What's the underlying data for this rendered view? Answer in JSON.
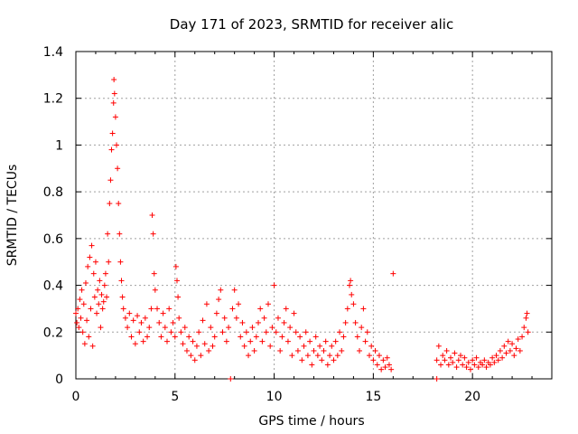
{
  "chart_data": {
    "type": "scatter",
    "title": "Day 171 of 2023, SRMTID for receiver alic",
    "xlabel": "GPS time / hours",
    "ylabel": "SRMTID / TECUs",
    "xlim": [
      0,
      24
    ],
    "ylim": [
      0,
      1.4
    ],
    "xticks": [
      0,
      5,
      10,
      15,
      20
    ],
    "xtick_labels": [
      "0",
      "5",
      "10",
      "15",
      "20"
    ],
    "yticks": [
      0,
      0.2,
      0.4,
      0.6,
      0.8,
      1.0,
      1.2,
      1.4
    ],
    "ytick_labels": [
      "0",
      "0.2",
      "0.4",
      "0.6",
      "0.8",
      "1",
      "1.2",
      "1.4"
    ],
    "grid": true,
    "marker": "+",
    "color": "#ff0000",
    "series": [
      {
        "name": "SRMTID",
        "points": [
          [
            0.0,
            0.28
          ],
          [
            0.05,
            0.24
          ],
          [
            0.1,
            0.3
          ],
          [
            0.15,
            0.22
          ],
          [
            0.2,
            0.34
          ],
          [
            0.25,
            0.26
          ],
          [
            0.3,
            0.38
          ],
          [
            0.35,
            0.2
          ],
          [
            0.4,
            0.32
          ],
          [
            0.45,
            0.15
          ],
          [
            0.5,
            0.41
          ],
          [
            0.55,
            0.25
          ],
          [
            0.6,
            0.48
          ],
          [
            0.65,
            0.18
          ],
          [
            0.7,
            0.52
          ],
          [
            0.75,
            0.3
          ],
          [
            0.8,
            0.57
          ],
          [
            0.85,
            0.14
          ],
          [
            0.9,
            0.45
          ],
          [
            0.95,
            0.35
          ],
          [
            1.0,
            0.5
          ],
          [
            1.05,
            0.28
          ],
          [
            1.1,
            0.38
          ],
          [
            1.15,
            0.32
          ],
          [
            1.2,
            0.42
          ],
          [
            1.25,
            0.22
          ],
          [
            1.3,
            0.36
          ],
          [
            1.35,
            0.3
          ],
          [
            1.4,
            0.33
          ],
          [
            1.45,
            0.4
          ],
          [
            1.5,
            0.45
          ],
          [
            1.55,
            0.35
          ],
          [
            1.6,
            0.62
          ],
          [
            1.65,
            0.5
          ],
          [
            1.7,
            0.75
          ],
          [
            1.75,
            0.85
          ],
          [
            1.8,
            0.98
          ],
          [
            1.85,
            1.05
          ],
          [
            1.9,
            1.18
          ],
          [
            1.92,
            1.28
          ],
          [
            1.95,
            1.22
          ],
          [
            2.0,
            1.12
          ],
          [
            2.05,
            1.0
          ],
          [
            2.1,
            0.9
          ],
          [
            2.15,
            0.75
          ],
          [
            2.2,
            0.62
          ],
          [
            2.25,
            0.5
          ],
          [
            2.3,
            0.42
          ],
          [
            2.35,
            0.35
          ],
          [
            2.4,
            0.3
          ],
          [
            2.5,
            0.26
          ],
          [
            2.6,
            0.22
          ],
          [
            2.7,
            0.28
          ],
          [
            2.8,
            0.18
          ],
          [
            2.9,
            0.25
          ],
          [
            3.0,
            0.15
          ],
          [
            3.1,
            0.27
          ],
          [
            3.2,
            0.2
          ],
          [
            3.3,
            0.24
          ],
          [
            3.4,
            0.16
          ],
          [
            3.5,
            0.26
          ],
          [
            3.6,
            0.18
          ],
          [
            3.7,
            0.22
          ],
          [
            3.8,
            0.3
          ],
          [
            3.85,
            0.7
          ],
          [
            3.9,
            0.62
          ],
          [
            3.95,
            0.45
          ],
          [
            4.0,
            0.38
          ],
          [
            4.1,
            0.3
          ],
          [
            4.2,
            0.24
          ],
          [
            4.3,
            0.18
          ],
          [
            4.4,
            0.28
          ],
          [
            4.5,
            0.22
          ],
          [
            4.6,
            0.16
          ],
          [
            4.7,
            0.3
          ],
          [
            4.8,
            0.2
          ],
          [
            4.9,
            0.24
          ],
          [
            5.0,
            0.18
          ],
          [
            5.05,
            0.48
          ],
          [
            5.1,
            0.42
          ],
          [
            5.15,
            0.35
          ],
          [
            5.2,
            0.26
          ],
          [
            5.3,
            0.2
          ],
          [
            5.4,
            0.15
          ],
          [
            5.5,
            0.22
          ],
          [
            5.6,
            0.12
          ],
          [
            5.7,
            0.18
          ],
          [
            5.8,
            0.1
          ],
          [
            5.9,
            0.16
          ],
          [
            6.0,
            0.08
          ],
          [
            6.1,
            0.14
          ],
          [
            6.2,
            0.2
          ],
          [
            6.3,
            0.1
          ],
          [
            6.4,
            0.25
          ],
          [
            6.5,
            0.15
          ],
          [
            6.6,
            0.32
          ],
          [
            6.7,
            0.12
          ],
          [
            6.8,
            0.22
          ],
          [
            6.9,
            0.14
          ],
          [
            7.0,
            0.18
          ],
          [
            7.1,
            0.28
          ],
          [
            7.2,
            0.34
          ],
          [
            7.3,
            0.38
          ],
          [
            7.4,
            0.2
          ],
          [
            7.5,
            0.26
          ],
          [
            7.6,
            0.16
          ],
          [
            7.7,
            0.22
          ],
          [
            7.8,
            0.0
          ],
          [
            7.9,
            0.3
          ],
          [
            8.0,
            0.38
          ],
          [
            8.1,
            0.26
          ],
          [
            8.2,
            0.32
          ],
          [
            8.3,
            0.18
          ],
          [
            8.4,
            0.24
          ],
          [
            8.5,
            0.14
          ],
          [
            8.6,
            0.2
          ],
          [
            8.7,
            0.1
          ],
          [
            8.8,
            0.16
          ],
          [
            8.9,
            0.22
          ],
          [
            9.0,
            0.12
          ],
          [
            9.1,
            0.18
          ],
          [
            9.2,
            0.24
          ],
          [
            9.3,
            0.3
          ],
          [
            9.4,
            0.16
          ],
          [
            9.5,
            0.26
          ],
          [
            9.6,
            0.2
          ],
          [
            9.7,
            0.32
          ],
          [
            9.8,
            0.14
          ],
          [
            9.9,
            0.22
          ],
          [
            10.0,
            0.4
          ],
          [
            10.1,
            0.2
          ],
          [
            10.2,
            0.26
          ],
          [
            10.3,
            0.12
          ],
          [
            10.4,
            0.18
          ],
          [
            10.5,
            0.24
          ],
          [
            10.6,
            0.3
          ],
          [
            10.7,
            0.16
          ],
          [
            10.8,
            0.22
          ],
          [
            10.9,
            0.1
          ],
          [
            11.0,
            0.28
          ],
          [
            11.1,
            0.2
          ],
          [
            11.2,
            0.12
          ],
          [
            11.3,
            0.18
          ],
          [
            11.4,
            0.08
          ],
          [
            11.5,
            0.14
          ],
          [
            11.6,
            0.2
          ],
          [
            11.7,
            0.1
          ],
          [
            11.8,
            0.16
          ],
          [
            11.9,
            0.06
          ],
          [
            12.0,
            0.12
          ],
          [
            12.1,
            0.18
          ],
          [
            12.2,
            0.1
          ],
          [
            12.3,
            0.14
          ],
          [
            12.4,
            0.08
          ],
          [
            12.5,
            0.12
          ],
          [
            12.6,
            0.16
          ],
          [
            12.7,
            0.06
          ],
          [
            12.8,
            0.1
          ],
          [
            12.9,
            0.14
          ],
          [
            13.0,
            0.08
          ],
          [
            13.1,
            0.16
          ],
          [
            13.2,
            0.1
          ],
          [
            13.3,
            0.2
          ],
          [
            13.4,
            0.12
          ],
          [
            13.5,
            0.18
          ],
          [
            13.6,
            0.24
          ],
          [
            13.7,
            0.3
          ],
          [
            13.8,
            0.4
          ],
          [
            13.85,
            0.42
          ],
          [
            13.9,
            0.36
          ],
          [
            14.0,
            0.32
          ],
          [
            14.1,
            0.24
          ],
          [
            14.2,
            0.18
          ],
          [
            14.3,
            0.12
          ],
          [
            14.4,
            0.22
          ],
          [
            14.5,
            0.3
          ],
          [
            14.6,
            0.16
          ],
          [
            14.7,
            0.2
          ],
          [
            14.8,
            0.1
          ],
          [
            14.9,
            0.14
          ],
          [
            15.0,
            0.08
          ],
          [
            15.1,
            0.12
          ],
          [
            15.2,
            0.06
          ],
          [
            15.3,
            0.1
          ],
          [
            15.4,
            0.04
          ],
          [
            15.5,
            0.08
          ],
          [
            15.6,
            0.05
          ],
          [
            15.7,
            0.09
          ],
          [
            15.8,
            0.06
          ],
          [
            15.9,
            0.04
          ],
          [
            16.0,
            0.45
          ],
          [
            18.2,
            0.0
          ],
          [
            18.2,
            0.08
          ],
          [
            18.3,
            0.14
          ],
          [
            18.4,
            0.06
          ],
          [
            18.5,
            0.1
          ],
          [
            18.6,
            0.08
          ],
          [
            18.7,
            0.12
          ],
          [
            18.8,
            0.06
          ],
          [
            18.9,
            0.09
          ],
          [
            19.0,
            0.07
          ],
          [
            19.1,
            0.11
          ],
          [
            19.2,
            0.05
          ],
          [
            19.3,
            0.08
          ],
          [
            19.4,
            0.1
          ],
          [
            19.5,
            0.06
          ],
          [
            19.6,
            0.09
          ],
          [
            19.7,
            0.05
          ],
          [
            19.8,
            0.07
          ],
          [
            19.9,
            0.04
          ],
          [
            20.0,
            0.08
          ],
          [
            20.1,
            0.06
          ],
          [
            20.2,
            0.09
          ],
          [
            20.3,
            0.05
          ],
          [
            20.4,
            0.07
          ],
          [
            20.5,
            0.06
          ],
          [
            20.6,
            0.08
          ],
          [
            20.7,
            0.05
          ],
          [
            20.8,
            0.07
          ],
          [
            20.9,
            0.06
          ],
          [
            21.0,
            0.09
          ],
          [
            21.1,
            0.07
          ],
          [
            21.2,
            0.1
          ],
          [
            21.3,
            0.08
          ],
          [
            21.4,
            0.12
          ],
          [
            21.5,
            0.09
          ],
          [
            21.6,
            0.14
          ],
          [
            21.7,
            0.11
          ],
          [
            21.8,
            0.16
          ],
          [
            21.9,
            0.12
          ],
          [
            22.0,
            0.15
          ],
          [
            22.1,
            0.1
          ],
          [
            22.2,
            0.13
          ],
          [
            22.3,
            0.17
          ],
          [
            22.4,
            0.12
          ],
          [
            22.5,
            0.18
          ],
          [
            22.6,
            0.22
          ],
          [
            22.7,
            0.26
          ],
          [
            22.75,
            0.28
          ],
          [
            22.8,
            0.2
          ]
        ]
      }
    ]
  }
}
